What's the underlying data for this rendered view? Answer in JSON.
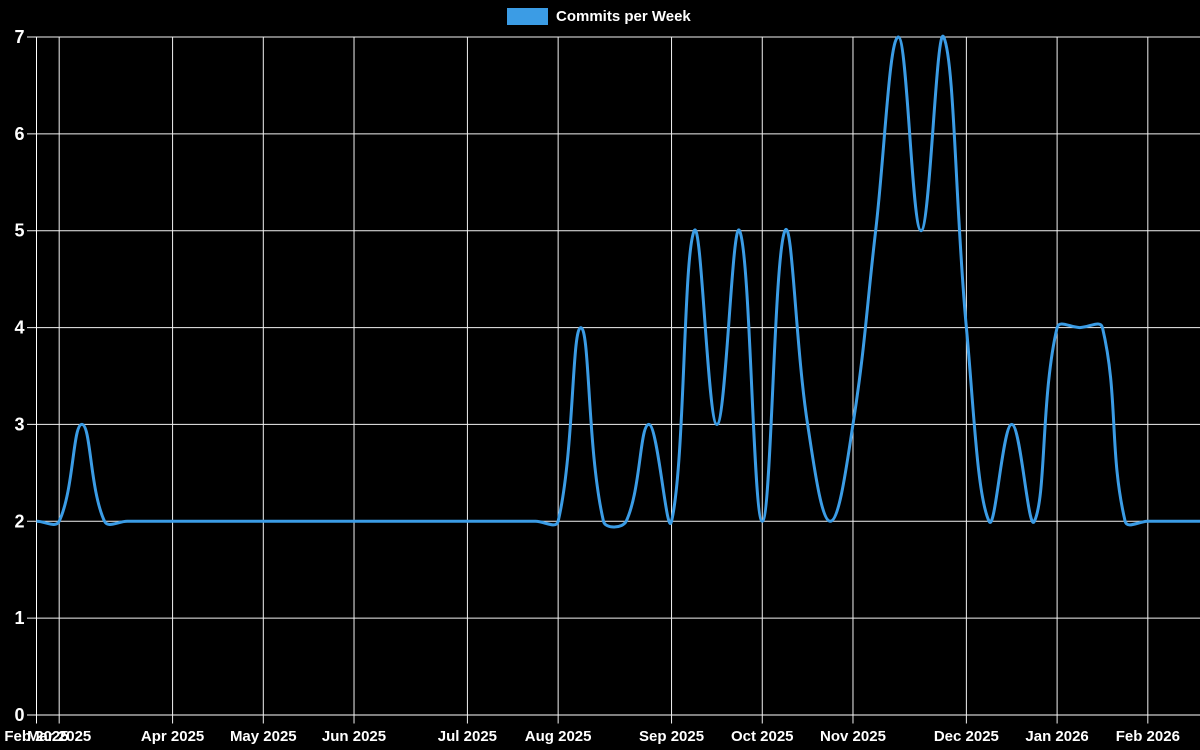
{
  "legend": {
    "label": "Commits per Week",
    "swatch_color": "#3b9ce5"
  },
  "colors": {
    "background": "#000000",
    "line": "#3b9ce5",
    "grid": "#f2f2f2",
    "axis": "#ffffff",
    "text": "#ffffff"
  },
  "chart_data": {
    "type": "line",
    "title": "Commits per Week",
    "legend_position": "top",
    "grid": true,
    "x_unit": "week",
    "series": [
      {
        "name": "Commits per Week",
        "color": "#3b9ce5",
        "weekly_values": [
          2,
          2,
          3,
          2,
          2,
          2,
          2,
          2,
          2,
          2,
          2,
          2,
          2,
          2,
          2,
          2,
          2,
          2,
          2,
          2,
          2,
          2,
          2,
          2,
          4,
          2,
          2,
          3,
          2,
          5,
          3,
          5,
          2,
          5,
          3,
          2,
          3,
          5,
          7,
          5,
          7,
          4,
          2,
          3,
          2,
          4,
          4,
          4,
          2,
          2,
          2,
          2
        ]
      }
    ],
    "x_axis": {
      "month_ticks": [
        {
          "label": "Feb 2025",
          "week": 0
        },
        {
          "label": "Mar 2025",
          "week": 1
        },
        {
          "label": "Apr 2025",
          "week": 6
        },
        {
          "label": "May 2025",
          "week": 10
        },
        {
          "label": "Jun 2025",
          "week": 14
        },
        {
          "label": "Jul 2025",
          "week": 19
        },
        {
          "label": "Aug 2025",
          "week": 23
        },
        {
          "label": "Sep 2025",
          "week": 28
        },
        {
          "label": "Oct 2025",
          "week": 32
        },
        {
          "label": "Nov 2025",
          "week": 36
        },
        {
          "label": "Dec 2025",
          "week": 41
        },
        {
          "label": "Jan 2026",
          "week": 45
        },
        {
          "label": "Feb 2026",
          "week": 49
        }
      ]
    },
    "y_axis": {
      "min": 0,
      "max": 7,
      "ticks": [
        "0",
        "1",
        "2",
        "3",
        "4",
        "5",
        "6",
        "7"
      ]
    }
  }
}
